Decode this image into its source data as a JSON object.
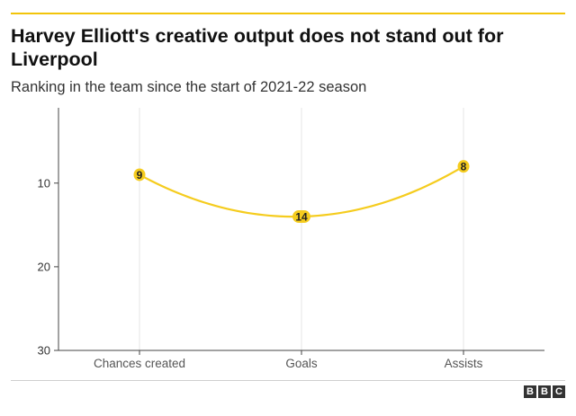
{
  "header": {
    "title": "Harvey Elliott's creative output does not stand out for Liverpool",
    "subtitle": "Ranking in the team since the start of 2021-22 season"
  },
  "colors": {
    "accent": "#f2c40a",
    "line": "#f5cc1e",
    "axis": "#444444",
    "grid": "#e6e6e6"
  },
  "chart_data": {
    "type": "line",
    "title": "Harvey Elliott's creative output does not stand out for Liverpool",
    "subtitle": "Ranking in the team since the start of 2021-22 season",
    "xlabel": "",
    "ylabel": "",
    "categories": [
      "Chances created",
      "Goals",
      "Assists"
    ],
    "series": [
      {
        "values": [
          9,
          14,
          8
        ],
        "labels": [
          "9",
          "14",
          "8"
        ]
      }
    ],
    "ylim": [
      1,
      30
    ],
    "y_inverted": true,
    "yticks": [
      10,
      20,
      30
    ],
    "ytick_labels": [
      "10",
      "20",
      "30"
    ],
    "grid": "vertical",
    "smooth": true
  },
  "branding": {
    "logo_letters": [
      "B",
      "B",
      "C"
    ]
  }
}
